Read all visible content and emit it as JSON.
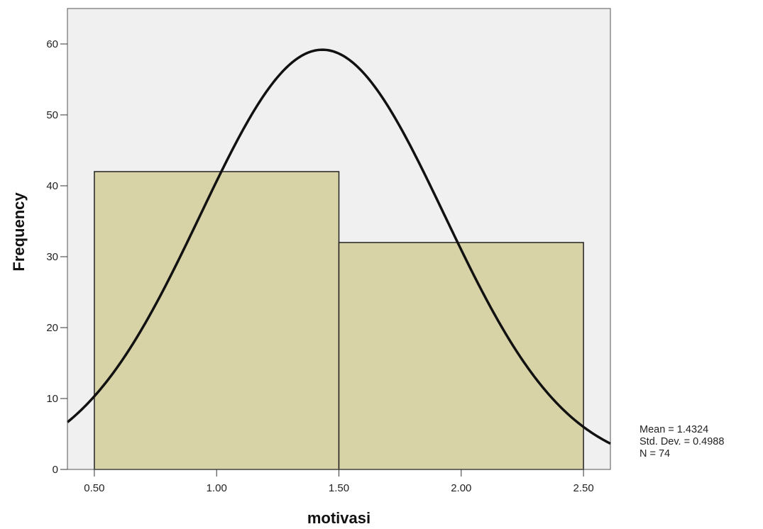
{
  "chart_data": {
    "type": "bar",
    "subtype": "histogram",
    "xlabel": "motivasi",
    "ylabel": "Frequency",
    "xlim": [
      0.39,
      2.61
    ],
    "ylim": [
      0,
      65
    ],
    "x_ticks": [
      "0.50",
      "1.00",
      "1.50",
      "2.00",
      "2.50"
    ],
    "y_ticks": [
      "0",
      "10",
      "20",
      "30",
      "40",
      "50",
      "60"
    ],
    "bins": [
      {
        "x0": 0.5,
        "x1": 1.5,
        "value": 42
      },
      {
        "x0": 1.5,
        "x1": 2.5,
        "value": 32
      }
    ],
    "normal_curve": {
      "mean": 1.4324,
      "std_dev": 0.4988,
      "n": 74,
      "bin_width": 1.0
    },
    "grid": false,
    "plot_background": "#f0f0f0",
    "bar_color": "#d8d3a7",
    "curve_color": "#111111",
    "stats_text": {
      "mean": "Mean = 1.4324",
      "std_dev": "Std. Dev. = 0.4988",
      "n": "N = 74"
    }
  }
}
